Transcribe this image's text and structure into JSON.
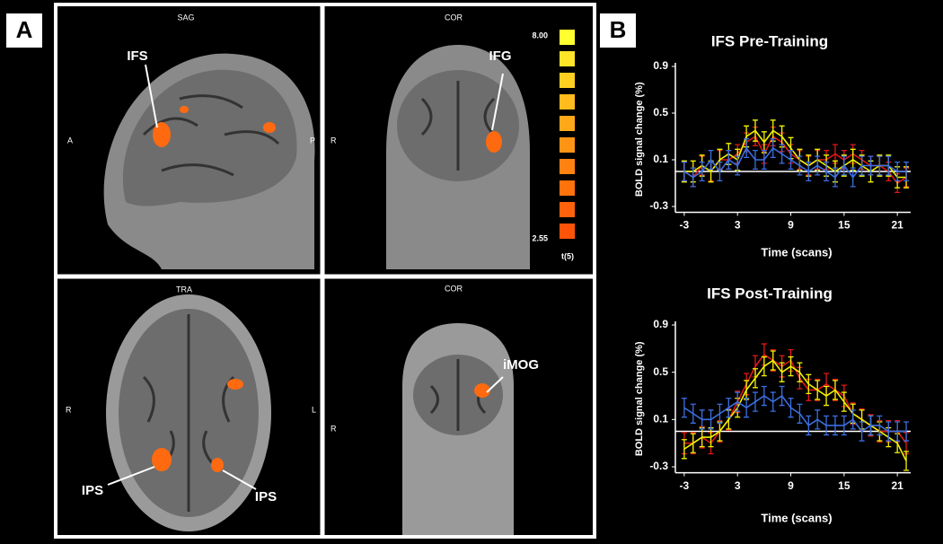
{
  "panel_a": {
    "label": "A",
    "views": [
      {
        "title": "SAG",
        "left": "A",
        "right": "P",
        "regions": [
          "IFS"
        ]
      },
      {
        "title": "COR",
        "left": "R",
        "regions": [
          "IFG"
        ]
      },
      {
        "title": "TRA",
        "left": "R",
        "right": "L",
        "regions": [
          "IPS",
          "IPS"
        ]
      },
      {
        "title": "COR",
        "left": "R",
        "regions": [
          "iMOG"
        ]
      }
    ],
    "colorbar": {
      "max": "8.00",
      "min": "2.55",
      "label": "t(5)"
    }
  },
  "panel_b": {
    "label": "B"
  },
  "chart_data": [
    {
      "type": "line",
      "title": "IFS Pre-Training",
      "x_label": "Time (scans)",
      "y_label": "BOLD signal change (%)",
      "x": [
        -3,
        -2,
        -1,
        0,
        1,
        2,
        3,
        4,
        5,
        6,
        7,
        8,
        9,
        10,
        11,
        12,
        13,
        14,
        15,
        16,
        17,
        18,
        19,
        20,
        21,
        22
      ],
      "xlim": [
        -4,
        22.5
      ],
      "xticks": [
        -3,
        3,
        9,
        15,
        21
      ],
      "ylim": [
        -0.35,
        0.9
      ],
      "yticks": [
        -0.3,
        0.1,
        0.5,
        0.9
      ],
      "baseline": 0,
      "series": [
        {
          "name": "red",
          "color": "#e01818",
          "error": 0.08,
          "values": [
            0.0,
            -0.05,
            0.05,
            0.0,
            0.1,
            0.1,
            0.15,
            0.25,
            0.3,
            0.15,
            0.3,
            0.25,
            0.15,
            0.1,
            0.05,
            0.1,
            0.1,
            0.15,
            0.1,
            0.15,
            0.1,
            0.05,
            0.05,
            0.0,
            -0.1,
            -0.05
          ]
        },
        {
          "name": "yellow",
          "color": "#f2f200",
          "error": 0.09,
          "values": [
            0.0,
            0.0,
            0.05,
            0.0,
            0.1,
            0.15,
            0.1,
            0.3,
            0.35,
            0.25,
            0.35,
            0.3,
            0.2,
            0.1,
            0.05,
            0.1,
            0.05,
            0.0,
            0.05,
            0.1,
            0.05,
            0.0,
            0.05,
            0.05,
            -0.05,
            -0.05
          ]
        },
        {
          "name": "blue",
          "color": "#3c6ee0",
          "error": 0.08,
          "values": [
            0.0,
            -0.05,
            0.0,
            0.1,
            0.0,
            0.1,
            0.05,
            0.2,
            0.1,
            0.1,
            0.2,
            0.15,
            0.1,
            0.05,
            0.0,
            0.05,
            0.0,
            -0.05,
            0.05,
            -0.05,
            0.05,
            0.05,
            0.05,
            0.05,
            0.0,
            0.0
          ]
        }
      ]
    },
    {
      "type": "line",
      "title": "IFS Post-Training",
      "x_label": "Time (scans)",
      "y_label": "BOLD signal change (%)",
      "x": [
        -3,
        -2,
        -1,
        0,
        1,
        2,
        3,
        4,
        5,
        6,
        7,
        8,
        9,
        10,
        11,
        12,
        13,
        14,
        15,
        16,
        17,
        18,
        19,
        20,
        21,
        22
      ],
      "xlim": [
        -4,
        22.5
      ],
      "xticks": [
        -3,
        3,
        9,
        15,
        21
      ],
      "ylim": [
        -0.35,
        0.9
      ],
      "yticks": [
        -0.3,
        0.1,
        0.5,
        0.9
      ],
      "baseline": 0,
      "series": [
        {
          "name": "red",
          "color": "#e01818",
          "error": 0.09,
          "values": [
            -0.1,
            -0.1,
            -0.05,
            -0.1,
            0.0,
            0.1,
            0.25,
            0.4,
            0.55,
            0.65,
            0.6,
            0.55,
            0.6,
            0.45,
            0.35,
            0.35,
            0.4,
            0.35,
            0.3,
            0.15,
            0.1,
            0.05,
            0.0,
            0.0,
            0.0,
            -0.1
          ]
        },
        {
          "name": "yellow",
          "color": "#f2f200",
          "error": 0.08,
          "values": [
            -0.15,
            -0.1,
            -0.05,
            -0.05,
            0.0,
            0.1,
            0.2,
            0.35,
            0.45,
            0.55,
            0.6,
            0.5,
            0.55,
            0.5,
            0.4,
            0.35,
            0.3,
            0.35,
            0.25,
            0.15,
            0.1,
            0.05,
            0.0,
            -0.05,
            -0.1,
            -0.25
          ]
        },
        {
          "name": "blue",
          "color": "#3c6ee0",
          "error": 0.08,
          "values": [
            0.2,
            0.15,
            0.1,
            0.1,
            0.15,
            0.2,
            0.25,
            0.2,
            0.25,
            0.3,
            0.25,
            0.3,
            0.2,
            0.15,
            0.05,
            0.1,
            0.05,
            0.05,
            0.05,
            0.1,
            0.0,
            0.05,
            0.05,
            0.0,
            0.0,
            0.0
          ]
        }
      ]
    }
  ]
}
